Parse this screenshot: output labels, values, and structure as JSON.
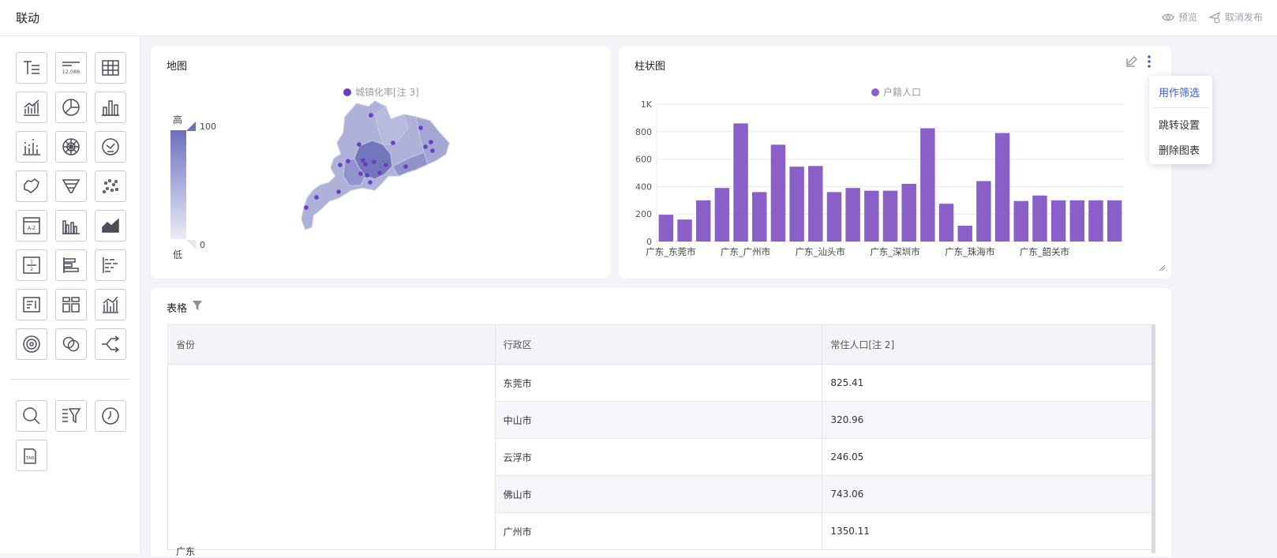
{
  "app": {
    "title": "联动",
    "actions": [
      {
        "label": "预览",
        "icon": "eye-icon"
      },
      {
        "label": "取消发布",
        "icon": "unpublish-icon"
      }
    ]
  },
  "sidebar": {
    "widgets": [
      {
        "name": "text-widget",
        "icon": "text-icon"
      },
      {
        "name": "kpi-widget",
        "icon": "kpi-number-icon",
        "text": "12,086"
      },
      {
        "name": "table-widget",
        "icon": "table-icon"
      },
      {
        "name": "line-chart-widget",
        "icon": "line-chart-icon"
      },
      {
        "name": "pie-chart-widget",
        "icon": "pie-chart-icon"
      },
      {
        "name": "bar-chart-widget",
        "icon": "bar-chart-icon"
      },
      {
        "name": "stacked-bar-widget",
        "icon": "stacked-bar-icon"
      },
      {
        "name": "radar-widget",
        "icon": "radar-icon"
      },
      {
        "name": "gauge-widget",
        "icon": "gauge-icon"
      },
      {
        "name": "map-widget",
        "icon": "map-icon"
      },
      {
        "name": "funnel-widget",
        "icon": "funnel-icon"
      },
      {
        "name": "scatter-widget",
        "icon": "scatter-icon"
      },
      {
        "name": "wordcloud-widget",
        "icon": "wordcloud-icon",
        "text": "A-Z"
      },
      {
        "name": "grouped-bar-widget",
        "icon": "grouped-bar-icon"
      },
      {
        "name": "area-chart-widget",
        "icon": "area-chart-icon"
      },
      {
        "name": "pagination-widget",
        "icon": "pagination-icon",
        "text_top": "1",
        "text_bottom": "2"
      },
      {
        "name": "horizontal-bar-widget",
        "icon": "horizontal-bar-icon"
      },
      {
        "name": "stacked-horizontal-bar-widget",
        "icon": "stacked-horizontal-bar-icon"
      },
      {
        "name": "list-widget",
        "icon": "list-icon"
      },
      {
        "name": "card-widget",
        "icon": "card-icon"
      },
      {
        "name": "combo-chart-widget",
        "icon": "combo-chart-icon"
      },
      {
        "name": "ring-widget",
        "icon": "ring-icon"
      },
      {
        "name": "venn-widget",
        "icon": "venn-icon"
      },
      {
        "name": "sankey-widget",
        "icon": "sankey-icon"
      }
    ],
    "controls": [
      {
        "name": "search-widget",
        "icon": "search-icon"
      },
      {
        "name": "filter-widget",
        "icon": "filter-icon"
      },
      {
        "name": "time-widget",
        "icon": "clock-icon"
      },
      {
        "name": "tab-widget",
        "icon": "tab-icon",
        "text": "TAB"
      }
    ]
  },
  "map_card": {
    "title": "地图",
    "legend": "城镇化率[注 3]",
    "scale_high_label": "高",
    "scale_low_label": "低",
    "scale_max": "100",
    "scale_min": "0",
    "colors": {
      "dot": "#6a3fbf",
      "region": "#a9add6",
      "region_dark": "#6b71b8"
    }
  },
  "bar_card": {
    "title": "柱状图",
    "legend": "户籍人口",
    "color": "#8a60c8"
  },
  "chart_data": {
    "type": "bar",
    "title": "柱状图",
    "categories": [
      "广东_东莞市",
      "",
      "",
      "",
      "广东_广州市",
      "",
      "",
      "",
      "广东_汕头市",
      "",
      "",
      "",
      "广东_深圳市",
      "",
      "",
      "",
      "广东_珠海市",
      "",
      "",
      "",
      "广东_韶关市",
      "",
      "",
      "",
      ""
    ],
    "series": [
      {
        "name": "户籍人口",
        "values": [
          195,
          160,
          300,
          390,
          860,
          360,
          705,
          545,
          550,
          360,
          390,
          370,
          370,
          420,
          825,
          275,
          115,
          440,
          790,
          295,
          335,
          300,
          300,
          300,
          300
        ]
      }
    ],
    "ylim": [
      0,
      1000
    ],
    "yticks": [
      "0",
      "200",
      "400",
      "600",
      "800",
      "1K"
    ],
    "legend_position": "top-center",
    "grid": true
  },
  "context_menu": {
    "items": [
      "用作筛选",
      "跳转设置",
      "删除图表"
    ]
  },
  "table_card": {
    "title": "表格",
    "columns": [
      "省份",
      "行政区",
      "常住人口[注 2]"
    ],
    "province": "广东",
    "rows": [
      {
        "district": "东莞市",
        "population": "825.41"
      },
      {
        "district": "中山市",
        "population": "320.96"
      },
      {
        "district": "云浮市",
        "population": "246.05"
      },
      {
        "district": "佛山市",
        "population": "743.06"
      },
      {
        "district": "广州市",
        "population": "1350.11"
      }
    ]
  }
}
